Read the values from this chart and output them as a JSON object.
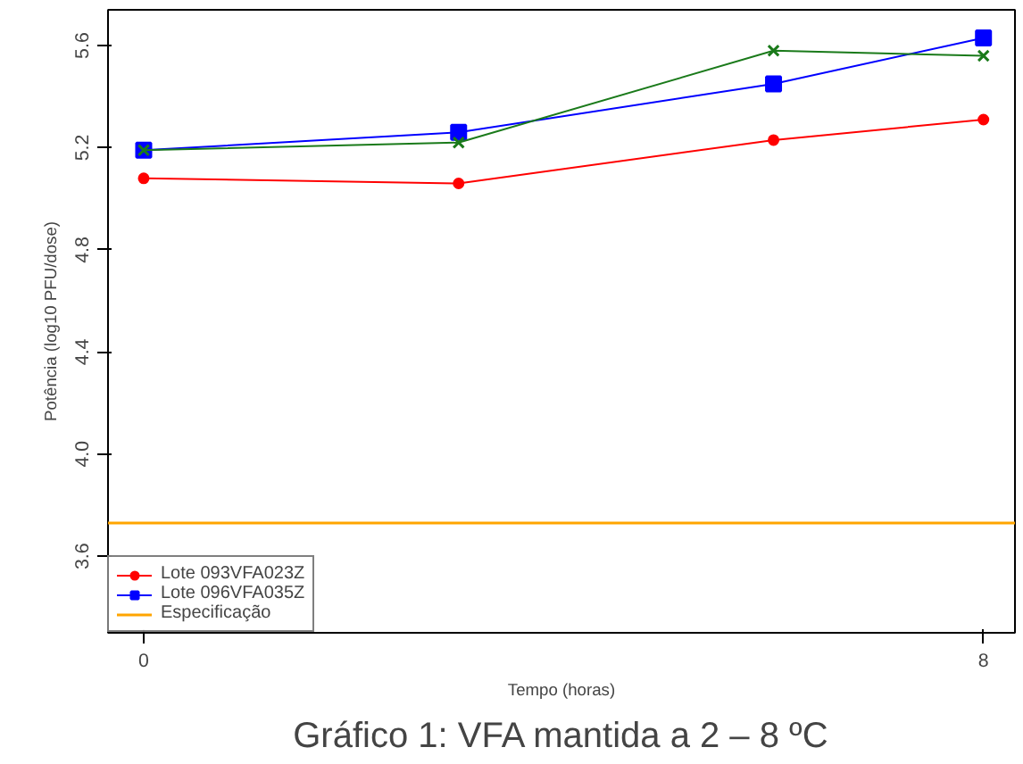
{
  "chart_data": {
    "type": "line",
    "xlabel": "Tempo (horas)",
    "ylabel": "Potência (log10 PFU/dose)",
    "x": [
      0,
      3,
      6,
      8
    ],
    "series": [
      {
        "name": "Lote 093VFA023Z",
        "color": "#ff0000",
        "marker": "circle",
        "values": [
          5.08,
          5.06,
          5.23,
          5.31
        ]
      },
      {
        "name": "Lote 096VFA035Z",
        "color": "#0000ff",
        "marker": "square",
        "values": [
          5.19,
          5.26,
          5.45,
          5.63
        ]
      },
      {
        "color": "#1a7a1a",
        "marker": "cross",
        "values": [
          5.19,
          5.22,
          5.58,
          5.56
        ]
      }
    ],
    "ref_lines": [
      {
        "axis": "y",
        "value": 3.73,
        "label": "Especificação",
        "color": "#ffa500"
      }
    ],
    "xlim": [
      -0.34,
      8.3
    ],
    "ylim": [
      3.3,
      5.74
    ],
    "xticks": [
      0,
      8
    ],
    "yticks": [
      3.6,
      {
        "value": 4,
        "label": "4.0"
      },
      4.4,
      4.8,
      5.2,
      5.6
    ],
    "legend": "bottom left",
    "grid": false,
    "annotations": [
      "Gráfico 1: VFA mantida a 2 – 8 ºC"
    ]
  }
}
